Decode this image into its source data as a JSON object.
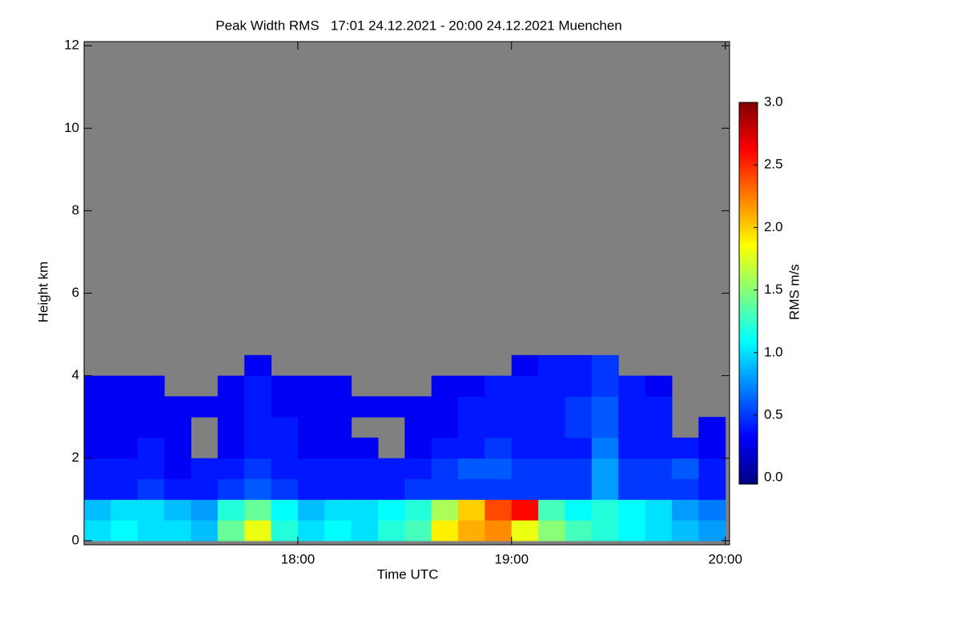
{
  "chart_data": {
    "type": "heatmap",
    "title": "Peak Width RMS   17:01 24.12.2021 - 20:00 24.12.2021 Muenchen",
    "xlabel": "Time UTC",
    "ylabel": "Height km",
    "colorbar_label": "RMS m/s",
    "colormap": "jet",
    "nodata_color": "#808080",
    "x": [
      17.0,
      17.125,
      17.25,
      17.375,
      17.5,
      17.625,
      17.75,
      17.875,
      18.0,
      18.125,
      18.25,
      18.375,
      18.5,
      18.625,
      18.75,
      18.875,
      19.0,
      19.125,
      19.25,
      19.375,
      19.5,
      19.625,
      19.75,
      19.875
    ],
    "y": [
      0,
      0.5,
      1.0,
      1.5,
      2.0,
      2.5,
      3.0,
      3.5,
      4.0
    ],
    "values": [
      [
        1.0,
        1.1,
        1.0,
        1.0,
        0.9,
        1.4,
        1.8,
        1.2,
        1.0,
        1.1,
        1.0,
        1.2,
        1.3,
        1.9,
        2.1,
        2.2,
        1.8,
        1.5,
        1.3,
        1.2,
        1.1,
        1.0,
        0.9,
        0.8
      ],
      [
        0.9,
        1.0,
        1.0,
        0.9,
        0.8,
        1.2,
        1.4,
        1.1,
        0.9,
        1.0,
        1.0,
        1.1,
        1.2,
        1.6,
        2.0,
        2.4,
        2.6,
        1.3,
        1.1,
        1.2,
        1.1,
        1.0,
        0.8,
        0.7
      ],
      [
        0.4,
        0.4,
        0.5,
        0.4,
        0.4,
        0.5,
        0.6,
        0.5,
        0.4,
        0.4,
        0.4,
        0.4,
        0.5,
        0.5,
        0.5,
        0.5,
        0.5,
        0.5,
        0.5,
        0.8,
        0.5,
        0.5,
        0.5,
        0.4
      ],
      [
        0.4,
        0.4,
        0.4,
        0.3,
        0.4,
        0.4,
        0.5,
        0.4,
        0.4,
        0.4,
        0.4,
        0.4,
        0.4,
        0.5,
        0.6,
        0.6,
        0.5,
        0.5,
        0.5,
        0.8,
        0.5,
        0.5,
        0.6,
        0.4
      ],
      [
        0.3,
        0.3,
        0.4,
        0.3,
        null,
        0.3,
        0.4,
        0.4,
        0.3,
        0.3,
        0.3,
        null,
        0.3,
        0.4,
        0.4,
        0.5,
        0.4,
        0.4,
        0.4,
        0.7,
        0.4,
        0.4,
        0.4,
        0.3
      ],
      [
        0.3,
        0.3,
        0.3,
        0.3,
        null,
        0.3,
        0.4,
        0.4,
        0.3,
        0.3,
        null,
        null,
        0.3,
        0.3,
        0.4,
        0.4,
        0.4,
        0.4,
        0.5,
        0.6,
        0.4,
        0.4,
        null,
        0.3
      ],
      [
        0.3,
        0.3,
        0.3,
        0.3,
        0.3,
        0.3,
        0.4,
        0.3,
        0.3,
        0.3,
        0.3,
        0.3,
        0.3,
        0.3,
        0.4,
        0.4,
        0.4,
        0.4,
        0.5,
        0.6,
        0.4,
        0.4,
        null,
        null
      ],
      [
        0.3,
        0.3,
        0.3,
        null,
        null,
        0.3,
        0.4,
        0.3,
        0.3,
        0.3,
        null,
        null,
        null,
        0.3,
        0.3,
        0.4,
        0.4,
        0.4,
        0.4,
        0.5,
        0.4,
        0.3,
        null,
        null
      ],
      [
        null,
        null,
        null,
        null,
        null,
        null,
        0.3,
        null,
        null,
        null,
        null,
        null,
        null,
        null,
        null,
        null,
        0.3,
        0.4,
        0.4,
        0.5,
        null,
        null,
        null,
        null
      ]
    ],
    "xlim": [
      17.0,
      20.02
    ],
    "ylim": [
      -0.1,
      12.1
    ],
    "clim": [
      -0.05,
      3.0
    ],
    "xticks": [
      {
        "value": 18,
        "label": "18:00"
      },
      {
        "value": 19,
        "label": "19:00"
      },
      {
        "value": 20,
        "label": "20:00"
      }
    ],
    "yticks": [
      0,
      2,
      4,
      6,
      8,
      10,
      12
    ],
    "cticks": [
      {
        "value": 0,
        "label": "0.0"
      },
      {
        "value": 0.5,
        "label": "0.5"
      },
      {
        "value": 1,
        "label": "1.0"
      },
      {
        "value": 1.5,
        "label": "1.5"
      },
      {
        "value": 2,
        "label": "2.0"
      },
      {
        "value": 2.5,
        "label": "2.5"
      },
      {
        "value": 3,
        "label": "3.0"
      }
    ]
  }
}
